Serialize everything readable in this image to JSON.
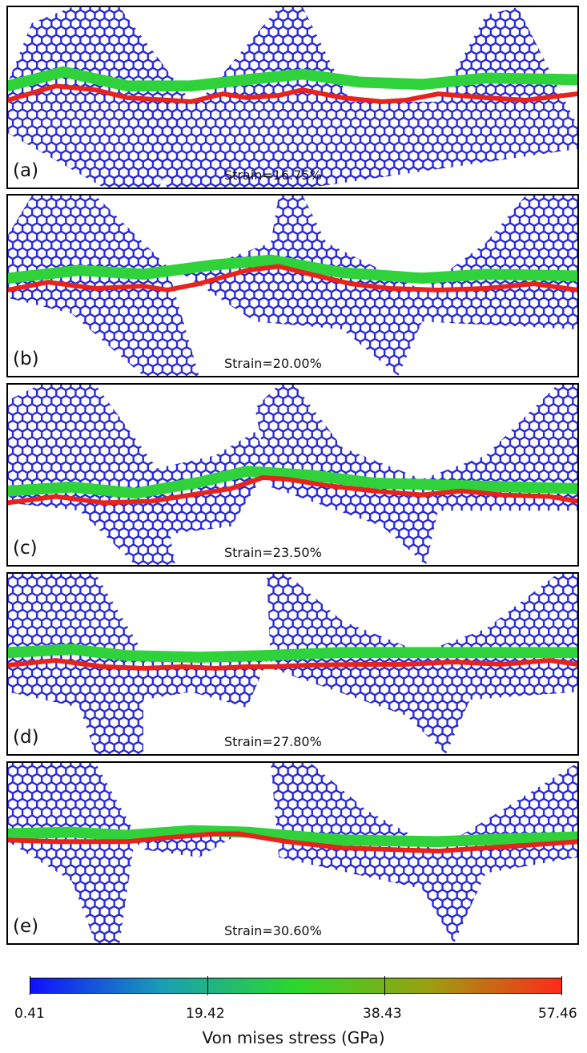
{
  "panels": [
    {
      "label": "(a)",
      "strain": "Strain=16.75%"
    },
    {
      "label": "(b)",
      "strain": "Strain=20.00%"
    },
    {
      "label": "(c)",
      "strain": "Strain=23.50%"
    },
    {
      "label": "(d)",
      "strain": "Strain=27.80%"
    },
    {
      "label": "(e)",
      "strain": "Strain=30.60%"
    }
  ],
  "colorbar": {
    "title": "Von mises stress (GPa)",
    "min": 0.41,
    "max": 57.46,
    "ticks": [
      "0.41",
      "19.42",
      "38.43",
      "57.46"
    ],
    "gradient": [
      "#1010ff",
      "#1a9fb5",
      "#2bd82b",
      "#9aa00f",
      "#ff2a1a"
    ]
  },
  "colors": {
    "low": "#2a2ad8",
    "mid": "#2fd23a",
    "high": "#e8231c"
  }
}
